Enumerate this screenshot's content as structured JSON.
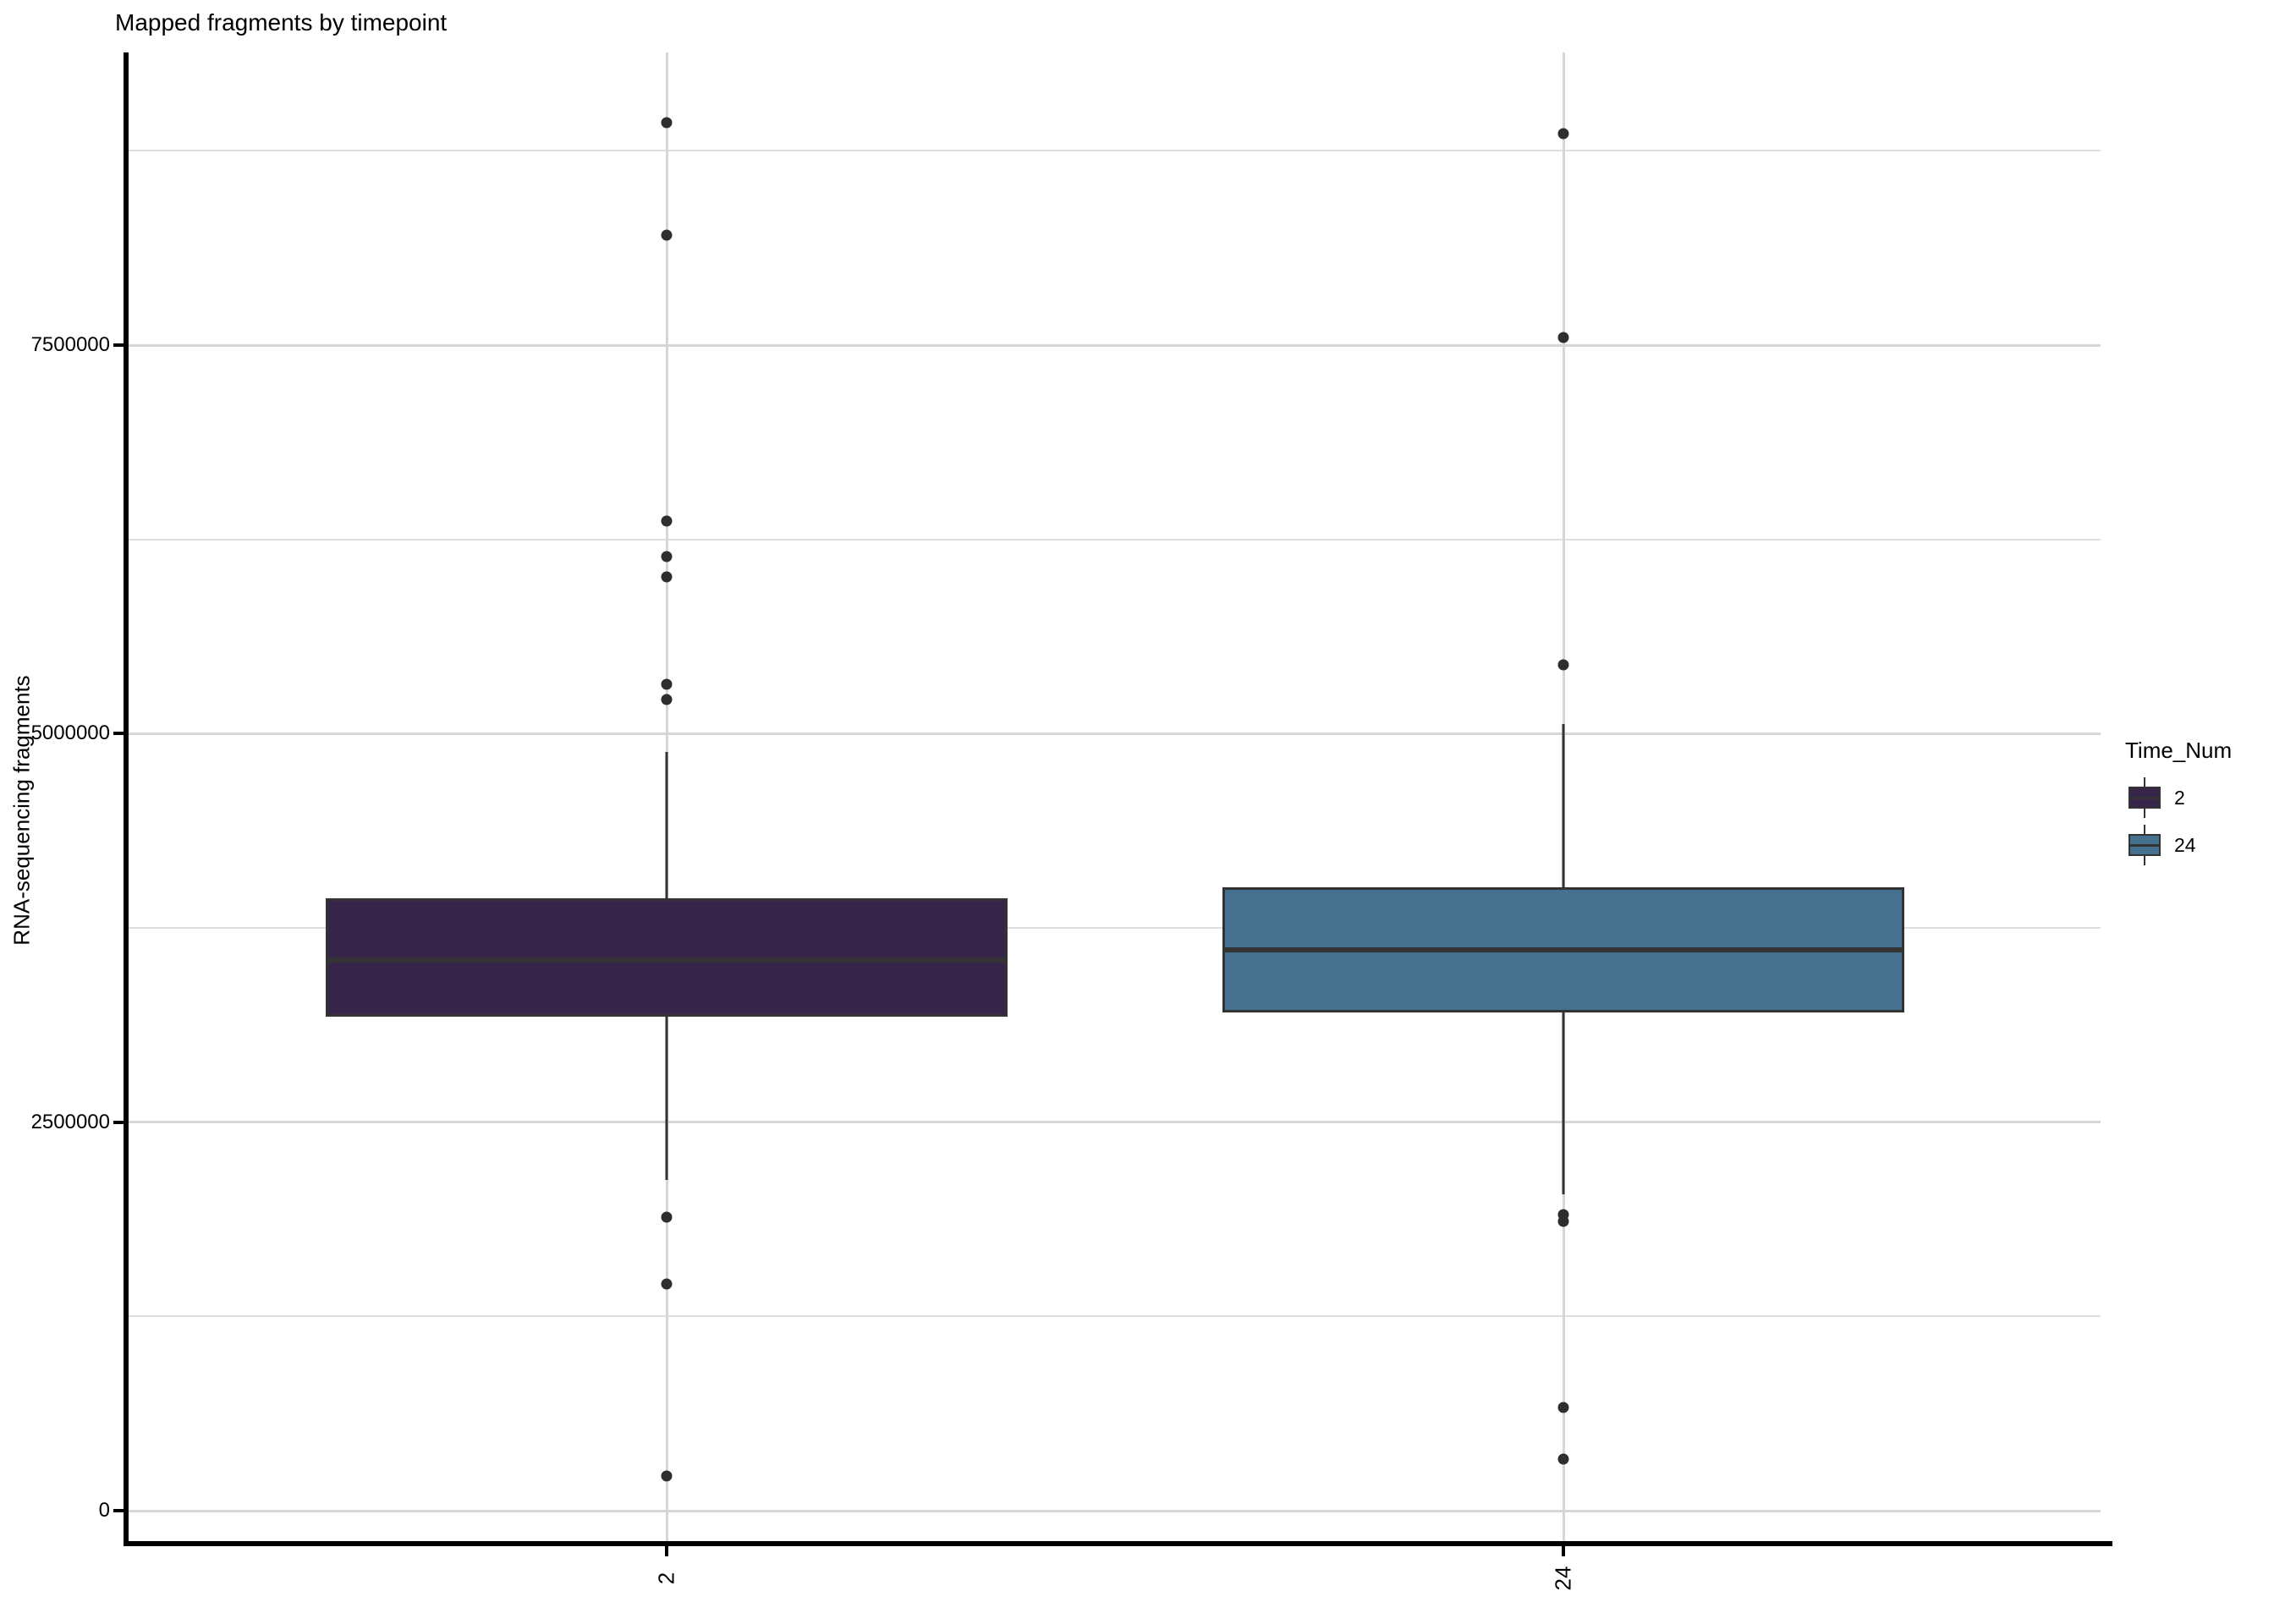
{
  "chart_data": {
    "type": "boxplot",
    "title": "Mapped fragments by timepoint",
    "xlabel": "",
    "ylabel": "RNA-sequencing fragments",
    "legend_title": "Time_Num",
    "legend_position": "right",
    "grid": true,
    "ylim": [
      0,
      9400000
    ],
    "y_ticks": [
      0,
      2500000,
      5000000,
      7500000
    ],
    "y_minor_ticks": [
      1250000,
      3750000,
      6250000,
      8750000
    ],
    "categories": [
      "2",
      "24"
    ],
    "series": [
      {
        "name": "2",
        "fill": "#372549",
        "lower_whisker": 2130000,
        "q1": 3180000,
        "median": 3545000,
        "q3": 3940000,
        "upper_whisker": 4880000,
        "outliers": [
          8930000,
          8210000,
          6370000,
          6140000,
          6010000,
          5320000,
          5220000,
          1890000,
          1460000,
          225000
        ]
      },
      {
        "name": "24",
        "fill": "#45718F",
        "lower_whisker": 2035000,
        "q1": 3205000,
        "median": 3610000,
        "q3": 4010000,
        "upper_whisker": 5060000,
        "outliers": [
          8860000,
          7550000,
          5440000,
          1905000,
          1860000,
          665000,
          330000
        ]
      }
    ],
    "colors": {
      "box_border": "#333333",
      "outlier_point": "#2e2e2e",
      "grid_major": "#d6d6d6",
      "grid_minor": "#dedede",
      "axis_line": "#000000",
      "text": "#000000",
      "background": "#ffffff"
    }
  }
}
